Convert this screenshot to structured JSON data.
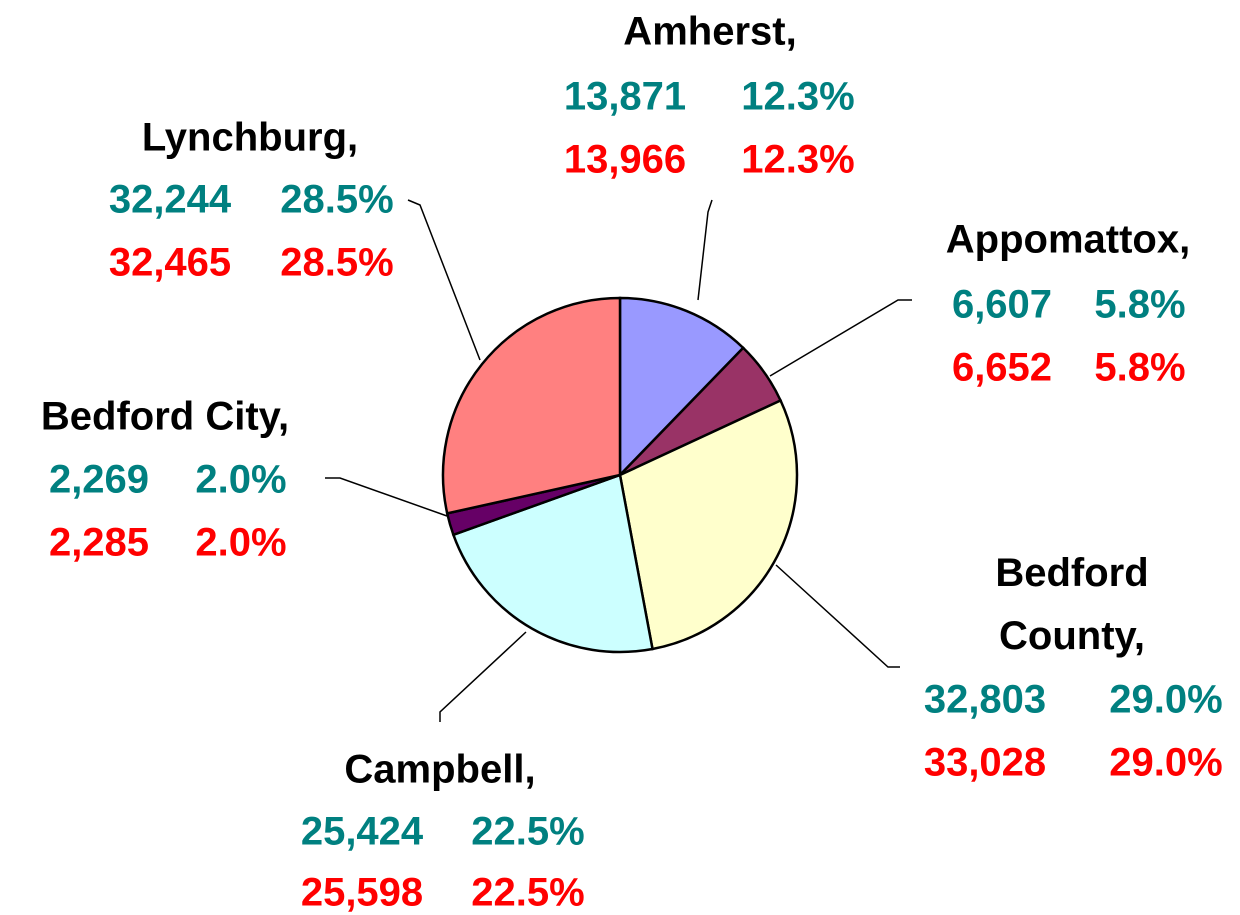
{
  "chart_data": {
    "type": "pie",
    "categories": [
      "Amherst,",
      "Appomattox,",
      "Bedford County,",
      "Campbell,",
      "Bedford City,",
      "Lynchburg,"
    ],
    "colors": [
      "#9999ff",
      "#993366",
      "#ffffcc",
      "#ccffff",
      "#660066",
      "#ff8080"
    ],
    "series": [
      {
        "color": "#008080",
        "values": [
          13871,
          6607,
          32803,
          25424,
          2269,
          32244
        ],
        "value_labels": [
          "13,871",
          "6,607",
          "32,803",
          "25,424",
          "2,269",
          "32,244"
        ],
        "percents": [
          12.3,
          5.8,
          29.0,
          22.5,
          2.0,
          28.5
        ],
        "percent_labels": [
          "12.3%",
          "5.8%",
          "29.0%",
          "22.5%",
          "2.0%",
          "28.5%"
        ]
      },
      {
        "color": "#ff0000",
        "values": [
          13966,
          6652,
          33028,
          25598,
          2285,
          32465
        ],
        "value_labels": [
          "13,966",
          "6,652",
          "33,028",
          "25,598",
          "2,285",
          "32,465"
        ],
        "percents": [
          12.3,
          5.8,
          29.0,
          22.5,
          2.0,
          28.5
        ],
        "percent_labels": [
          "12.3%",
          "5.8%",
          "29.0%",
          "22.5%",
          "2.0%",
          "28.5%"
        ]
      }
    ]
  }
}
